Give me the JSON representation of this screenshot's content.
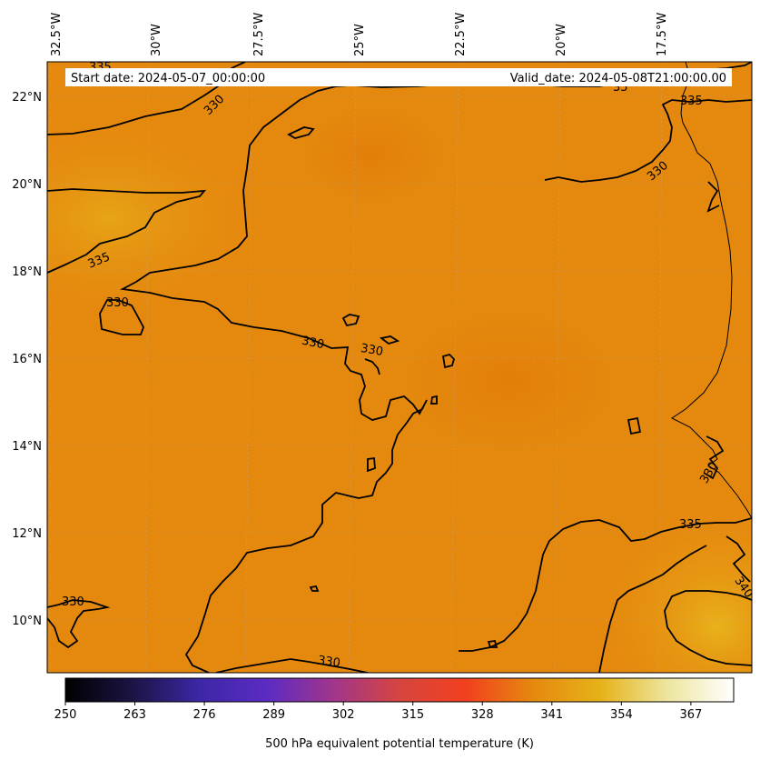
{
  "header": {
    "start_date": "Start date: 2024-05-07_00:00:00",
    "valid_date": "Valid_date: 2024-05-08T21:00:00.00"
  },
  "map": {
    "longitude_labels": [
      "32.5°W",
      "30°W",
      "27.5°W",
      "25°W",
      "22.5°W",
      "20°W",
      "17.5°W"
    ],
    "latitude_labels": [
      "22°N",
      "20°N",
      "18°N",
      "16°N",
      "14°N",
      "12°N",
      "10°N"
    ],
    "contour_labels": [
      {
        "text": "335"
      },
      {
        "text": "330"
      },
      {
        "text": "335"
      },
      {
        "text": "330"
      },
      {
        "text": "330"
      },
      {
        "text": "330"
      },
      {
        "text": "335"
      },
      {
        "text": "330"
      },
      {
        "text": "330"
      },
      {
        "text": "335"
      },
      {
        "text": "340"
      },
      {
        "text": "330"
      },
      {
        "text": "330"
      },
      {
        "text": "35"
      }
    ],
    "colors": {
      "background": "#E5890E",
      "warm_patch": "#E8A615",
      "contour": "#000000",
      "grid": "#B0B0B0"
    }
  },
  "colorbar": {
    "title": "500 hPa equivalent potential temperature (K)",
    "min": 250,
    "max": 375,
    "ticks": [
      "250",
      "263",
      "276",
      "289",
      "302",
      "315",
      "328",
      "341",
      "354",
      "367"
    ],
    "gradient": [
      "#000000",
      "#1B1444",
      "#3C27A5",
      "#5B2BC3",
      "#A0358C",
      "#D6453F",
      "#F2401E",
      "#E5890E",
      "#E6B218",
      "#EDE59E",
      "#FFFFFF"
    ]
  }
}
